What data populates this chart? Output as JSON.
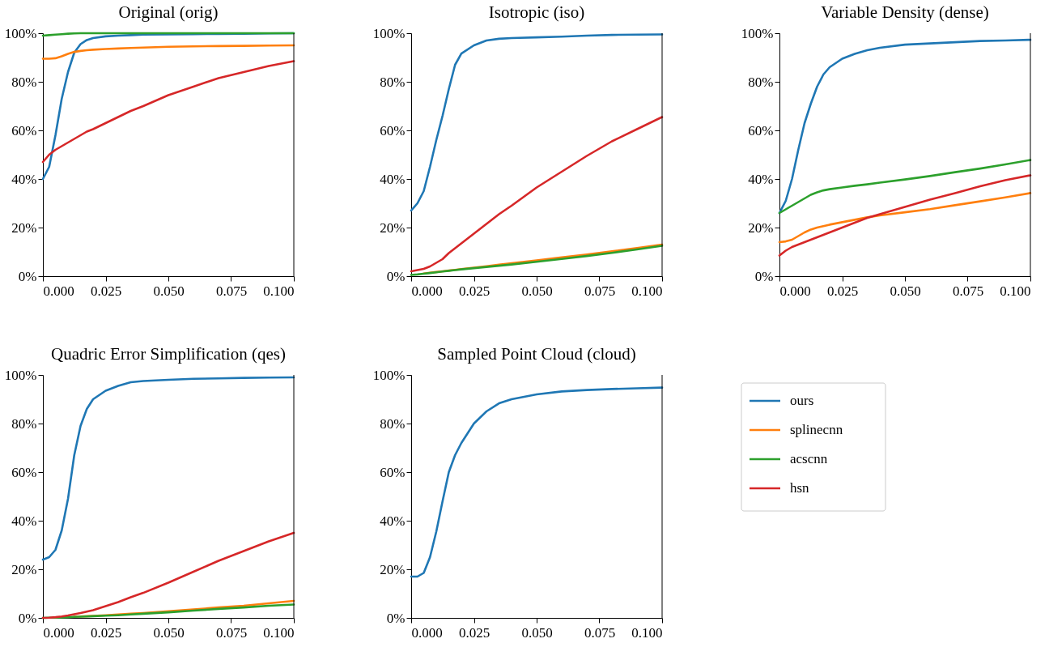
{
  "chart_data": [
    {
      "type": "line",
      "title": "Original (orig)",
      "x": [
        0,
        0.0025,
        0.005,
        0.0075,
        0.01,
        0.0125,
        0.015,
        0.0175,
        0.02,
        0.025,
        0.03,
        0.035,
        0.04,
        0.05,
        0.06,
        0.07,
        0.08,
        0.09,
        0.1
      ],
      "xlim": [
        0,
        0.1
      ],
      "xticks": [
        {
          "value": 0,
          "label": "0.000"
        },
        {
          "value": 0.025,
          "label": "0.025"
        },
        {
          "value": 0.05,
          "label": "0.050"
        },
        {
          "value": 0.075,
          "label": "0.075"
        },
        {
          "value": 0.1,
          "label": "0.100"
        }
      ],
      "ylim": [
        0,
        100
      ],
      "yticks": [
        {
          "value": 0,
          "label": "0%"
        },
        {
          "value": 20,
          "label": "20%"
        },
        {
          "value": 40,
          "label": "40%"
        },
        {
          "value": 60,
          "label": "60%"
        },
        {
          "value": 80,
          "label": "80%"
        },
        {
          "value": 100,
          "label": "100%"
        }
      ],
      "grid": false,
      "legend": "bottom right",
      "series": [
        {
          "name": "ours",
          "color": "#1f77b4",
          "values": [
            40,
            45,
            58,
            73,
            84,
            92,
            95.5,
            97.2,
            98,
            98.7,
            99,
            99.2,
            99.4,
            99.5,
            99.6,
            99.7,
            99.8,
            99.9,
            100
          ]
        },
        {
          "name": "splinecnn",
          "color": "#ff7f0e",
          "values": [
            89.5,
            89.5,
            89.7,
            90.5,
            91.5,
            92.3,
            92.7,
            93,
            93.2,
            93.5,
            93.7,
            93.9,
            94.1,
            94.4,
            94.6,
            94.7,
            94.8,
            94.9,
            95
          ]
        },
        {
          "name": "acscnn",
          "color": "#2ca02c",
          "values": [
            99,
            99.2,
            99.4,
            99.6,
            99.8,
            99.9,
            100,
            100,
            100,
            100,
            100,
            100,
            100,
            100,
            100,
            100,
            100,
            100,
            100
          ]
        },
        {
          "name": "hsn",
          "color": "#d62728",
          "values": [
            47,
            50,
            52,
            53.5,
            55,
            56.5,
            58,
            59.5,
            60.5,
            63,
            65.5,
            68,
            70,
            74.5,
            78,
            81.5,
            84,
            86.5,
            88.5
          ]
        }
      ]
    },
    {
      "type": "line",
      "title": "Isotropic (iso)",
      "x": [
        0,
        0.0025,
        0.005,
        0.0075,
        0.01,
        0.0125,
        0.015,
        0.0175,
        0.02,
        0.025,
        0.03,
        0.035,
        0.04,
        0.05,
        0.06,
        0.07,
        0.08,
        0.09,
        0.1
      ],
      "xlim": [
        0,
        0.1
      ],
      "xticks": [
        {
          "value": 0,
          "label": "0.000"
        },
        {
          "value": 0.025,
          "label": "0.025"
        },
        {
          "value": 0.05,
          "label": "0.050"
        },
        {
          "value": 0.075,
          "label": "0.075"
        },
        {
          "value": 0.1,
          "label": "0.100"
        }
      ],
      "ylim": [
        0,
        100
      ],
      "yticks": [
        {
          "value": 0,
          "label": "0%"
        },
        {
          "value": 20,
          "label": "20%"
        },
        {
          "value": 40,
          "label": "40%"
        },
        {
          "value": 60,
          "label": "60%"
        },
        {
          "value": 80,
          "label": "80%"
        },
        {
          "value": 100,
          "label": "100%"
        }
      ],
      "grid": false,
      "series": [
        {
          "name": "ours",
          "color": "#1f77b4",
          "values": [
            27,
            30,
            35,
            45,
            56,
            66,
            77,
            87,
            91.6,
            95,
            97,
            97.7,
            98,
            98.3,
            98.6,
            99,
            99.3,
            99.4,
            99.5
          ]
        },
        {
          "name": "splinecnn",
          "color": "#ff7f0e",
          "values": [
            null,
            null,
            1.1,
            1.4,
            1.7,
            2,
            2.3,
            2.6,
            2.9,
            3.5,
            4.1,
            4.7,
            5.3,
            6.5,
            7.7,
            8.9,
            10.2,
            11.6,
            13
          ]
        },
        {
          "name": "acscnn",
          "color": "#2ca02c",
          "values": [
            0.5,
            0.7,
            1,
            1.3,
            1.6,
            1.9,
            2.2,
            2.5,
            2.8,
            3.3,
            3.8,
            4.3,
            4.8,
            5.9,
            7.1,
            8.3,
            9.6,
            11,
            12.5
          ]
        },
        {
          "name": "hsn",
          "color": "#d62728",
          "values": [
            2,
            2.5,
            3,
            4,
            5.5,
            7,
            9.5,
            11.5,
            13.5,
            17.5,
            21.5,
            25.5,
            29,
            36.5,
            43,
            49.5,
            55.5,
            60.5,
            65.5
          ]
        }
      ]
    },
    {
      "type": "line",
      "title": "Variable Density (dense)",
      "x": [
        0,
        0.0025,
        0.005,
        0.0075,
        0.01,
        0.0125,
        0.015,
        0.0175,
        0.02,
        0.025,
        0.03,
        0.035,
        0.04,
        0.05,
        0.06,
        0.07,
        0.08,
        0.09,
        0.1
      ],
      "xlim": [
        0,
        0.1
      ],
      "xticks": [
        {
          "value": 0,
          "label": "0.000"
        },
        {
          "value": 0.025,
          "label": "0.025"
        },
        {
          "value": 0.05,
          "label": "0.050"
        },
        {
          "value": 0.075,
          "label": "0.075"
        },
        {
          "value": 0.1,
          "label": "0.100"
        }
      ],
      "ylim": [
        0,
        100
      ],
      "yticks": [
        {
          "value": 0,
          "label": "0%"
        },
        {
          "value": 20,
          "label": "20%"
        },
        {
          "value": 40,
          "label": "40%"
        },
        {
          "value": 60,
          "label": "60%"
        },
        {
          "value": 80,
          "label": "80%"
        },
        {
          "value": 100,
          "label": "100%"
        }
      ],
      "grid": false,
      "series": [
        {
          "name": "ours",
          "color": "#1f77b4",
          "values": [
            26,
            31,
            40,
            52,
            63,
            71,
            78,
            83,
            86,
            89.5,
            91.5,
            93,
            94,
            95.3,
            95.8,
            96.3,
            96.8,
            97,
            97.3
          ]
        },
        {
          "name": "splinecnn",
          "color": "#ff7f0e",
          "values": [
            14,
            14.3,
            15,
            16.5,
            18,
            19.2,
            20,
            20.6,
            21.2,
            22.2,
            23.2,
            24.2,
            25,
            26.3,
            27.6,
            29.2,
            30.8,
            32.4,
            34.2
          ]
        },
        {
          "name": "acscnn",
          "color": "#2ca02c",
          "values": [
            26,
            27.5,
            29,
            30.5,
            32,
            33.5,
            34.5,
            35.3,
            35.8,
            36.5,
            37.2,
            37.8,
            38.5,
            39.8,
            41.2,
            42.8,
            44.3,
            46,
            47.8
          ]
        },
        {
          "name": "hsn",
          "color": "#d62728",
          "values": [
            8.5,
            10.5,
            12,
            13,
            14,
            15,
            16,
            17,
            18,
            20,
            22,
            24,
            25.5,
            28.5,
            31.5,
            34.2,
            37,
            39.5,
            41.5
          ]
        }
      ]
    },
    {
      "type": "line",
      "title": "Quadric Error Simplification (qes)",
      "x": [
        0,
        0.0025,
        0.005,
        0.0075,
        0.01,
        0.0125,
        0.015,
        0.0175,
        0.02,
        0.025,
        0.03,
        0.035,
        0.04,
        0.05,
        0.06,
        0.07,
        0.08,
        0.09,
        0.1
      ],
      "xlim": [
        0,
        0.1
      ],
      "xticks": [
        {
          "value": 0,
          "label": "0.000"
        },
        {
          "value": 0.025,
          "label": "0.025"
        },
        {
          "value": 0.05,
          "label": "0.050"
        },
        {
          "value": 0.075,
          "label": "0.075"
        },
        {
          "value": 0.1,
          "label": "0.100"
        }
      ],
      "ylim": [
        0,
        100
      ],
      "yticks": [
        {
          "value": 0,
          "label": "0%"
        },
        {
          "value": 20,
          "label": "20%"
        },
        {
          "value": 40,
          "label": "40%"
        },
        {
          "value": 60,
          "label": "60%"
        },
        {
          "value": 80,
          "label": "80%"
        },
        {
          "value": 100,
          "label": "100%"
        }
      ],
      "grid": false,
      "series": [
        {
          "name": "ours",
          "color": "#1f77b4",
          "values": [
            24,
            25,
            28,
            36,
            49,
            67,
            79,
            86,
            90,
            93.5,
            95.5,
            97,
            97.5,
            98,
            98.4,
            98.6,
            98.8,
            98.9,
            99
          ]
        },
        {
          "name": "splinecnn",
          "color": "#ff7f0e",
          "values": [
            null,
            null,
            null,
            null,
            null,
            0.5,
            0.6,
            0.7,
            0.8,
            1.1,
            1.4,
            1.7,
            2,
            2.7,
            3.5,
            4.3,
            5,
            6,
            7
          ]
        },
        {
          "name": "acscnn",
          "color": "#2ca02c",
          "values": [
            0,
            0.1,
            0.1,
            0.2,
            0.3,
            0.4,
            0.5,
            0.6,
            0.7,
            0.9,
            1.1,
            1.4,
            1.7,
            2.3,
            3,
            3.7,
            4.3,
            5,
            5.5
          ]
        },
        {
          "name": "hsn",
          "color": "#d62728",
          "values": [
            0,
            0.1,
            0.3,
            0.6,
            1,
            1.5,
            2,
            2.6,
            3.2,
            4.8,
            6.5,
            8.5,
            10.3,
            14.5,
            19,
            23.5,
            27.5,
            31.5,
            35
          ]
        }
      ]
    },
    {
      "type": "line",
      "title": "Sampled Point Cloud (cloud)",
      "x": [
        0,
        0.0025,
        0.005,
        0.0075,
        0.01,
        0.0125,
        0.015,
        0.0175,
        0.02,
        0.025,
        0.03,
        0.035,
        0.04,
        0.05,
        0.06,
        0.07,
        0.08,
        0.09,
        0.1
      ],
      "xlim": [
        0,
        0.1
      ],
      "xticks": [
        {
          "value": 0,
          "label": "0.000"
        },
        {
          "value": 0.025,
          "label": "0.025"
        },
        {
          "value": 0.05,
          "label": "0.050"
        },
        {
          "value": 0.075,
          "label": "0.075"
        },
        {
          "value": 0.1,
          "label": "0.100"
        }
      ],
      "ylim": [
        0,
        100
      ],
      "yticks": [
        {
          "value": 0,
          "label": "0%"
        },
        {
          "value": 20,
          "label": "20%"
        },
        {
          "value": 40,
          "label": "40%"
        },
        {
          "value": 60,
          "label": "60%"
        },
        {
          "value": 80,
          "label": "80%"
        },
        {
          "value": 100,
          "label": "100%"
        }
      ],
      "grid": false,
      "series": [
        {
          "name": "ours",
          "color": "#1f77b4",
          "values": [
            17,
            17,
            18.5,
            25,
            35.5,
            48,
            60,
            67,
            72,
            80,
            85,
            88.3,
            90,
            92,
            93.2,
            93.8,
            94.2,
            94.5,
            94.8
          ]
        }
      ]
    }
  ]
}
